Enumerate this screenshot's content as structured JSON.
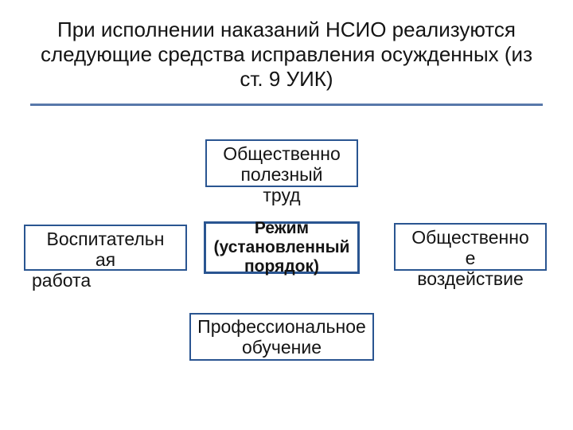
{
  "diagram": {
    "type": "infographic",
    "background_color": "#ffffff",
    "title": "При исполнении наказаний НСИО реализуются следующие средства исправления осужденных (из ст. 9 УИК)",
    "title_fontsize": 26,
    "title_color": "#141414",
    "rule_color": "#5878aa",
    "box_border_color": "#2a5591",
    "box_text_color": "#141414",
    "box_fontsize": 23,
    "center_fontsize": 21,
    "boxes": {
      "top": {
        "line1": "Общественно",
        "line2": "полезный",
        "overflow": "труд"
      },
      "left": {
        "line1": "Воспитательн",
        "line2": "ая",
        "overflow": "работа"
      },
      "center": {
        "text": "Режим (установленный порядок)"
      },
      "right": {
        "line1": "Общественно",
        "line2": "е",
        "overflow": "воздействие"
      },
      "bottom": {
        "text": "Профессиональное обучение"
      }
    }
  }
}
